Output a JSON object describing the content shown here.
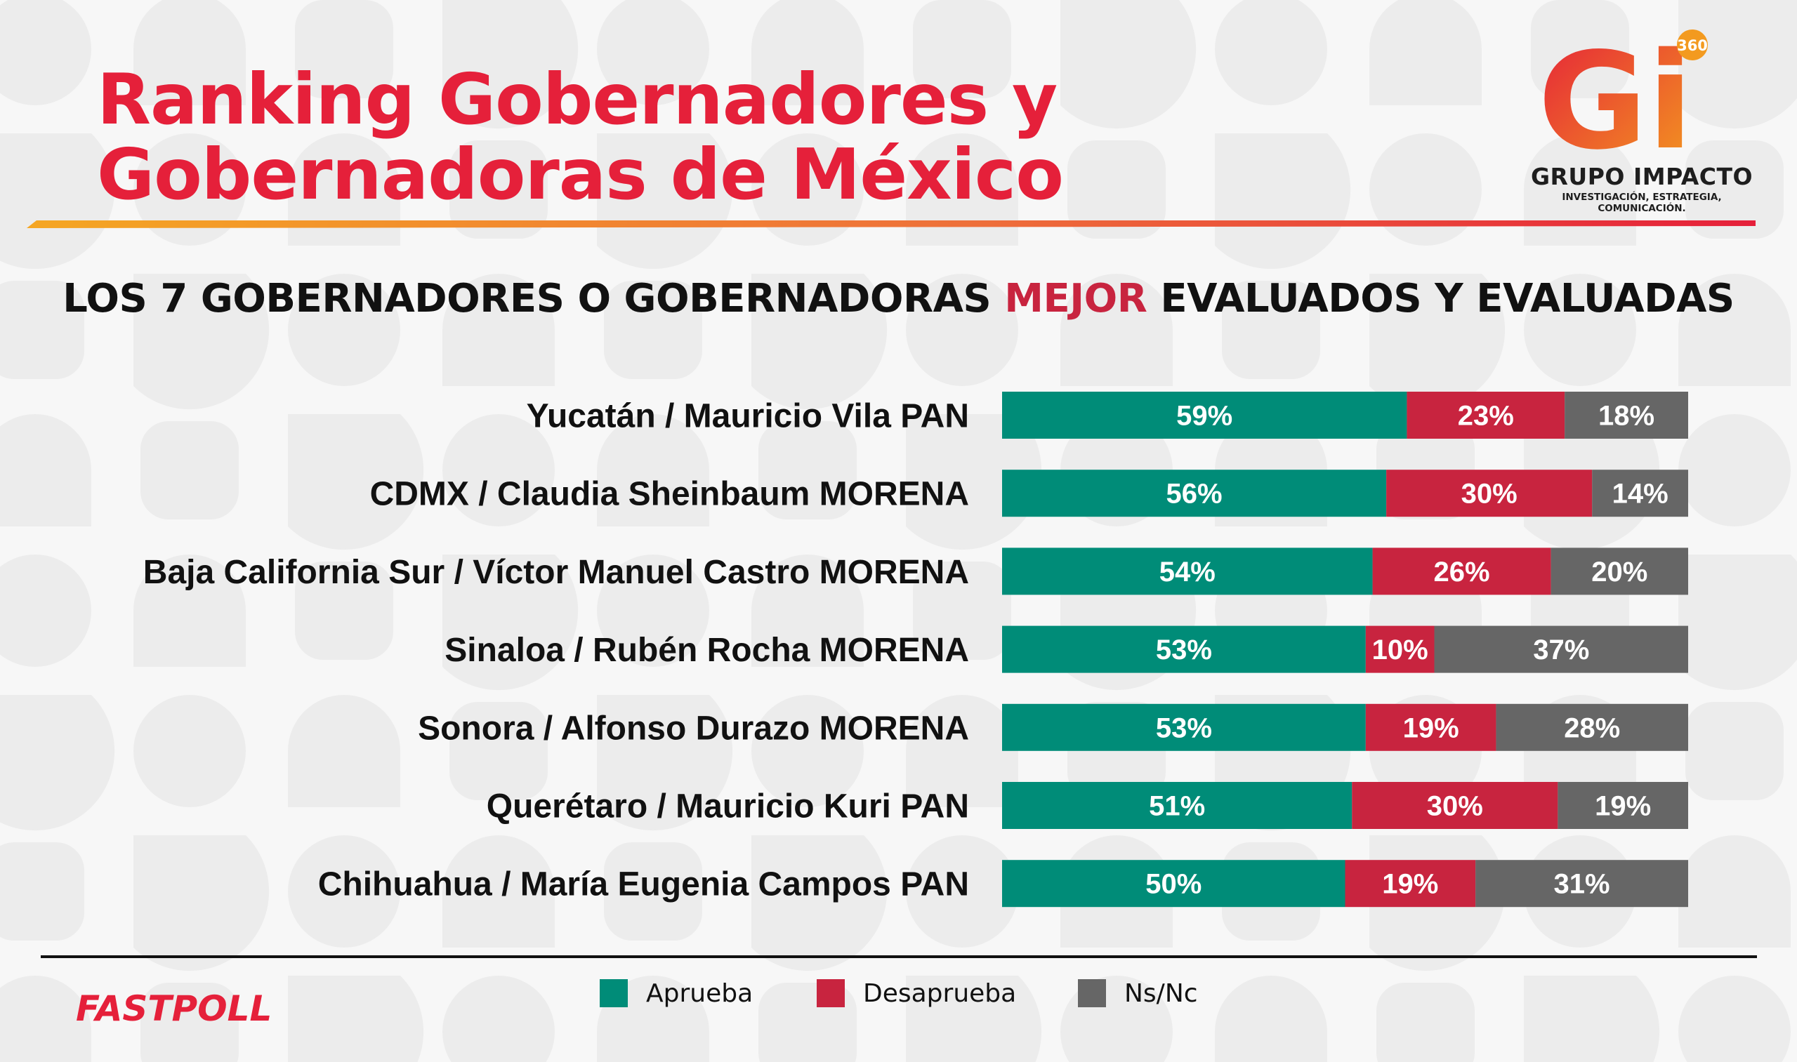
{
  "header": {
    "title_line1": "Ranking Gobernadores y",
    "title_line2": "Gobernadoras de México",
    "subtitle_pre": "LOS 7 GOBERNADORES O GOBERNADORAS",
    "subtitle_highlight": "MEJOR",
    "subtitle_post": "EVALUADOS Y EVALUADAS"
  },
  "logo": {
    "mark": "Gi",
    "badge": "360",
    "company": "GRUPO IMPACTO",
    "tagline": "INVESTIGACIÓN, ESTRATEGIA, COMUNICACIÓN."
  },
  "footer": {
    "brand": "FASTPOLL",
    "legend": [
      "Aprueba",
      "Desaprueba",
      "Ns/Nc"
    ]
  },
  "colors": {
    "brand_red": "#e5203a",
    "aprueba": "#008c78",
    "desaprueba": "#c8243f",
    "nsnc": "#666666"
  },
  "chart_data": {
    "type": "bar",
    "orientation": "horizontal",
    "stacked": true,
    "categories": [
      "Yucatán / Mauricio Vila PAN",
      "CDMX / Claudia Sheinbaum MORENA",
      "Baja California Sur / Víctor Manuel Castro MORENA",
      "Sinaloa / Rubén Rocha MORENA",
      "Sonora / Alfonso Durazo MORENA",
      "Querétaro / Mauricio Kuri PAN",
      "Chihuahua / María Eugenia Campos PAN"
    ],
    "series": [
      {
        "name": "Aprueba",
        "color": "#008c78",
        "values": [
          59,
          56,
          54,
          53,
          53,
          51,
          50
        ]
      },
      {
        "name": "Desaprueba",
        "color": "#c8243f",
        "values": [
          23,
          30,
          26,
          10,
          19,
          30,
          19
        ]
      },
      {
        "name": "Ns/Nc",
        "color": "#666666",
        "values": [
          18,
          14,
          20,
          37,
          28,
          19,
          31
        ]
      }
    ],
    "value_suffix": "%",
    "xlim": [
      0,
      100
    ],
    "legend_position": "bottom",
    "grid": false
  }
}
